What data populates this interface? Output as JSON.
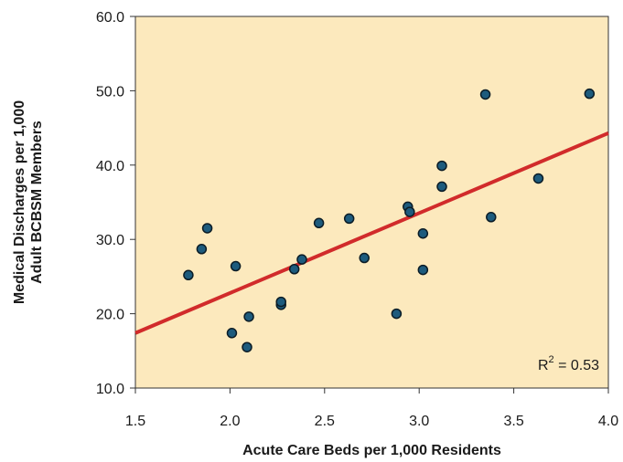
{
  "chart_data": {
    "type": "scatter",
    "xlabel": "Acute Care Beds per 1,000 Residents",
    "ylabel_lines": [
      "Medical Discharges per 1,000",
      "Adult BCBSM Members"
    ],
    "xlim": [
      1.5,
      4.0
    ],
    "ylim": [
      10.0,
      60.0
    ],
    "x_ticks": [
      "1.5",
      "2.0",
      "2.5",
      "3.0",
      "3.5",
      "4.0"
    ],
    "y_ticks": [
      "10.0",
      "20.0",
      "30.0",
      "40.0",
      "50.0",
      "60.0"
    ],
    "grid": false,
    "background_color": "#fce9bd",
    "point_color": "#1d5b7d",
    "point_outline": "#0b1c26",
    "trendline_color": "#d12b2b",
    "trendline": {
      "x": [
        1.5,
        4.0
      ],
      "y": [
        17.4,
        44.3
      ]
    },
    "annotation": {
      "r2_prefix": "R",
      "r2_sup": "2",
      "r2_value": " = 0.53"
    },
    "points": [
      {
        "x": 1.78,
        "y": 25.2
      },
      {
        "x": 1.85,
        "y": 28.7
      },
      {
        "x": 1.88,
        "y": 31.5
      },
      {
        "x": 2.01,
        "y": 17.4
      },
      {
        "x": 2.03,
        "y": 26.4
      },
      {
        "x": 2.09,
        "y": 15.5
      },
      {
        "x": 2.1,
        "y": 19.6
      },
      {
        "x": 2.27,
        "y": 21.2
      },
      {
        "x": 2.27,
        "y": 21.6
      },
      {
        "x": 2.34,
        "y": 26.0
      },
      {
        "x": 2.38,
        "y": 27.3
      },
      {
        "x": 2.47,
        "y": 32.2
      },
      {
        "x": 2.63,
        "y": 32.8
      },
      {
        "x": 2.71,
        "y": 27.5
      },
      {
        "x": 2.88,
        "y": 20.0
      },
      {
        "x": 2.94,
        "y": 34.4
      },
      {
        "x": 2.95,
        "y": 33.7
      },
      {
        "x": 3.02,
        "y": 30.8
      },
      {
        "x": 3.02,
        "y": 25.9
      },
      {
        "x": 3.12,
        "y": 39.9
      },
      {
        "x": 3.12,
        "y": 37.1
      },
      {
        "x": 3.35,
        "y": 49.5
      },
      {
        "x": 3.38,
        "y": 33.0
      },
      {
        "x": 3.63,
        "y": 38.2
      },
      {
        "x": 3.9,
        "y": 49.6
      }
    ]
  }
}
